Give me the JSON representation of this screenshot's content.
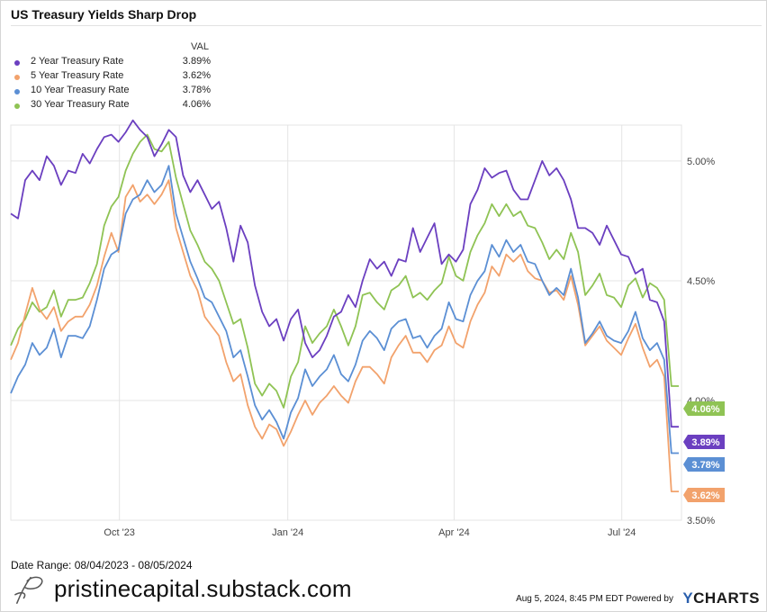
{
  "header": {
    "title": "US Treasury Yields Sharp Drop"
  },
  "legend": {
    "value_header": "VAL",
    "items": [
      {
        "name": "2 Year Treasury Rate",
        "value": "3.89%",
        "color": "#6b3fc0"
      },
      {
        "name": "5 Year Treasury Rate",
        "value": "3.62%",
        "color": "#f2a26c"
      },
      {
        "name": "10 Year Treasury Rate",
        "value": "3.78%",
        "color": "#5b8fd4"
      },
      {
        "name": "30 Year Treasury Rate",
        "value": "4.06%",
        "color": "#8fc354"
      }
    ]
  },
  "footer": {
    "date_range": "Date Range: 08/04/2023 - 08/05/2024",
    "brand": "pristinecapital.substack.com",
    "powered": "Aug 5, 2024, 8:45 PM EDT Powered by",
    "ycharts_y": "Y",
    "ycharts_rest": "CHARTS"
  },
  "chart_data": {
    "type": "line",
    "title": "US Treasury Yields Sharp Drop",
    "xlabel": "",
    "ylabel": "",
    "ylim": [
      3.5,
      5.15
    ],
    "y_ticks": [
      3.5,
      4.0,
      4.5,
      5.0
    ],
    "y_tick_labels": [
      "3.50%",
      "4.00%",
      "4.50%",
      "5.00%"
    ],
    "x_ticks": [
      {
        "label": "Oct '23",
        "t": 0.162
      },
      {
        "label": "Jan '24",
        "t": 0.413
      },
      {
        "label": "Apr '24",
        "t": 0.661
      },
      {
        "label": "Jul '24",
        "t": 0.911
      }
    ],
    "grid": true,
    "legend_position": "top-left",
    "series": [
      {
        "name": "2 Year Treasury Rate",
        "color": "#6b3fc0",
        "end_label": "3.89%",
        "values": [
          4.78,
          4.76,
          4.92,
          4.96,
          4.92,
          5.02,
          4.98,
          4.9,
          4.96,
          4.95,
          5.03,
          4.99,
          5.05,
          5.1,
          5.11,
          5.08,
          5.12,
          5.17,
          5.13,
          5.1,
          5.02,
          5.07,
          5.13,
          5.1,
          4.94,
          4.87,
          4.92,
          4.86,
          4.8,
          4.83,
          4.72,
          4.58,
          4.73,
          4.66,
          4.48,
          4.37,
          4.31,
          4.34,
          4.25,
          4.34,
          4.38,
          4.24,
          4.18,
          4.21,
          4.27,
          4.35,
          4.37,
          4.44,
          4.39,
          4.5,
          4.59,
          4.55,
          4.58,
          4.52,
          4.59,
          4.58,
          4.72,
          4.62,
          4.68,
          4.74,
          4.57,
          4.61,
          4.58,
          4.63,
          4.82,
          4.88,
          4.97,
          4.93,
          4.95,
          4.96,
          4.88,
          4.84,
          4.84,
          4.92,
          5.0,
          4.94,
          4.97,
          4.92,
          4.84,
          4.72,
          4.72,
          4.7,
          4.65,
          4.73,
          4.67,
          4.61,
          4.6,
          4.53,
          4.55,
          4.42,
          4.41,
          4.33,
          3.89,
          3.89
        ]
      },
      {
        "name": "5 Year Treasury Rate",
        "color": "#f2a26c",
        "end_label": "3.62%",
        "values": [
          4.17,
          4.24,
          4.36,
          4.47,
          4.38,
          4.34,
          4.39,
          4.29,
          4.33,
          4.35,
          4.35,
          4.4,
          4.48,
          4.6,
          4.7,
          4.62,
          4.85,
          4.9,
          4.83,
          4.86,
          4.82,
          4.86,
          4.92,
          4.72,
          4.62,
          4.52,
          4.46,
          4.35,
          4.31,
          4.27,
          4.16,
          4.08,
          4.11,
          3.98,
          3.89,
          3.84,
          3.9,
          3.88,
          3.81,
          3.87,
          3.94,
          4.0,
          3.94,
          3.99,
          4.02,
          4.06,
          4.02,
          3.99,
          4.08,
          4.14,
          4.14,
          4.11,
          4.07,
          4.18,
          4.23,
          4.27,
          4.2,
          4.2,
          4.16,
          4.21,
          4.23,
          4.31,
          4.24,
          4.22,
          4.33,
          4.4,
          4.45,
          4.56,
          4.52,
          4.61,
          4.58,
          4.61,
          4.54,
          4.51,
          4.5,
          4.45,
          4.46,
          4.42,
          4.52,
          4.4,
          4.23,
          4.27,
          4.31,
          4.25,
          4.22,
          4.19,
          4.26,
          4.32,
          4.22,
          4.14,
          4.17,
          4.1,
          3.62,
          3.62
        ]
      },
      {
        "name": "10 Year Treasury Rate",
        "color": "#5b8fd4",
        "end_label": "3.78%",
        "values": [
          4.03,
          4.1,
          4.15,
          4.24,
          4.19,
          4.22,
          4.3,
          4.18,
          4.27,
          4.27,
          4.26,
          4.31,
          4.42,
          4.55,
          4.61,
          4.63,
          4.78,
          4.84,
          4.86,
          4.92,
          4.87,
          4.9,
          4.98,
          4.78,
          4.68,
          4.58,
          4.51,
          4.43,
          4.41,
          4.35,
          4.29,
          4.18,
          4.21,
          4.1,
          3.98,
          3.92,
          3.96,
          3.91,
          3.84,
          3.95,
          4.01,
          4.13,
          4.06,
          4.1,
          4.13,
          4.19,
          4.11,
          4.08,
          4.15,
          4.25,
          4.29,
          4.26,
          4.21,
          4.3,
          4.33,
          4.34,
          4.26,
          4.27,
          4.22,
          4.27,
          4.3,
          4.41,
          4.34,
          4.33,
          4.44,
          4.5,
          4.54,
          4.65,
          4.6,
          4.67,
          4.62,
          4.65,
          4.58,
          4.57,
          4.5,
          4.44,
          4.47,
          4.44,
          4.55,
          4.43,
          4.24,
          4.28,
          4.33,
          4.27,
          4.25,
          4.24,
          4.29,
          4.37,
          4.26,
          4.21,
          4.24,
          4.17,
          3.78,
          3.78
        ]
      },
      {
        "name": "30 Year Treasury Rate",
        "color": "#8fc354",
        "end_label": "4.06%",
        "values": [
          4.23,
          4.3,
          4.34,
          4.41,
          4.37,
          4.39,
          4.46,
          4.35,
          4.42,
          4.42,
          4.43,
          4.49,
          4.57,
          4.73,
          4.81,
          4.85,
          4.96,
          5.03,
          5.08,
          5.11,
          5.05,
          5.04,
          5.08,
          4.93,
          4.82,
          4.71,
          4.65,
          4.58,
          4.55,
          4.5,
          4.41,
          4.32,
          4.34,
          4.22,
          4.07,
          4.02,
          4.07,
          4.04,
          3.97,
          4.1,
          4.16,
          4.31,
          4.24,
          4.28,
          4.31,
          4.38,
          4.31,
          4.23,
          4.31,
          4.44,
          4.45,
          4.41,
          4.38,
          4.46,
          4.48,
          4.52,
          4.43,
          4.45,
          4.42,
          4.46,
          4.49,
          4.6,
          4.52,
          4.5,
          4.62,
          4.69,
          4.74,
          4.82,
          4.77,
          4.82,
          4.77,
          4.79,
          4.73,
          4.72,
          4.66,
          4.59,
          4.63,
          4.59,
          4.7,
          4.62,
          4.44,
          4.48,
          4.53,
          4.44,
          4.43,
          4.39,
          4.48,
          4.51,
          4.43,
          4.49,
          4.47,
          4.42,
          4.06,
          4.06
        ]
      }
    ]
  }
}
